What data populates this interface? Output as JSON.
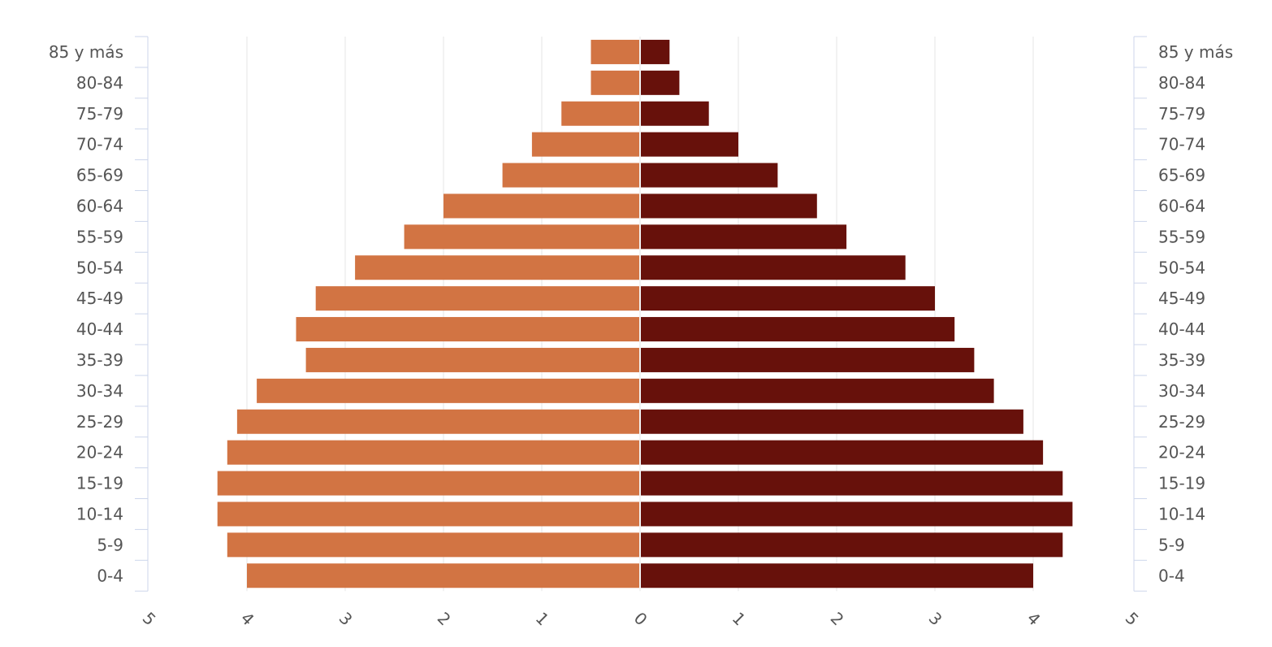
{
  "chart_data": {
    "type": "bar",
    "orientation": "horizontal",
    "subtype": "population-pyramid",
    "title": "",
    "xlabel": "",
    "ylabel": "",
    "categories": [
      "0-4",
      "5-9",
      "10-14",
      "15-19",
      "20-24",
      "25-29",
      "30-34",
      "35-39",
      "40-44",
      "45-49",
      "50-54",
      "55-59",
      "60-64",
      "65-69",
      "70-74",
      "75-79",
      "80-84",
      "85 y más"
    ],
    "series": [
      {
        "side": "left",
        "color": "#D27443",
        "values": [
          4.0,
          4.2,
          4.3,
          4.3,
          4.2,
          4.1,
          3.9,
          3.4,
          3.5,
          3.3,
          2.9,
          2.4,
          2.0,
          1.4,
          1.1,
          0.8,
          0.5,
          0.5
        ]
      },
      {
        "side": "right",
        "color": "#67110B",
        "values": [
          4.0,
          4.3,
          4.4,
          4.3,
          4.1,
          3.9,
          3.6,
          3.4,
          3.2,
          3.0,
          2.7,
          2.1,
          1.8,
          1.4,
          1.0,
          0.7,
          0.4,
          0.3
        ]
      }
    ],
    "xlim": [
      -5,
      5
    ],
    "xticks": [
      -5,
      -4,
      -3,
      -2,
      -1,
      0,
      1,
      2,
      3,
      4,
      5
    ],
    "xtick_labels": [
      "5",
      "4",
      "3",
      "2",
      "1",
      "0",
      "1",
      "2",
      "3",
      "4",
      "5"
    ],
    "grid": true,
    "legend": "none"
  }
}
